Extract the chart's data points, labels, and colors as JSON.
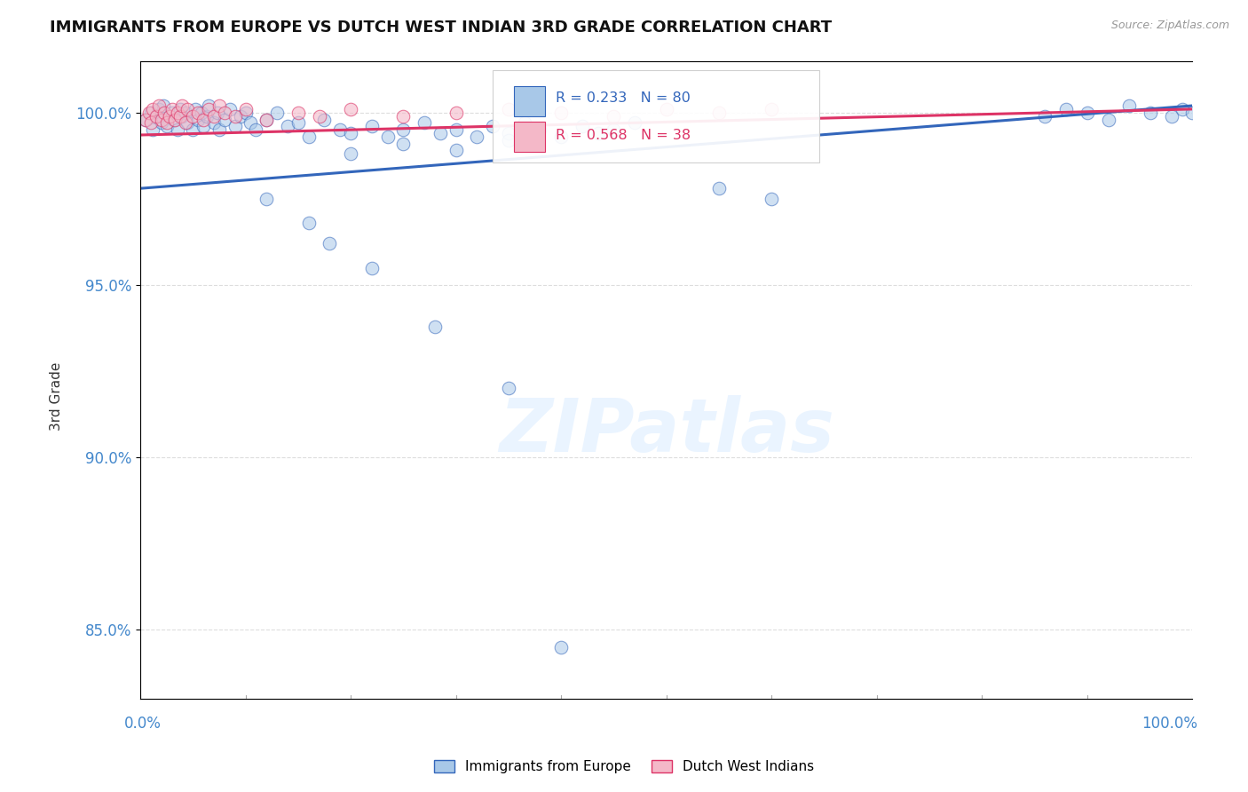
{
  "title": "IMMIGRANTS FROM EUROPE VS DUTCH WEST INDIAN 3RD GRADE CORRELATION CHART",
  "source": "Source: ZipAtlas.com",
  "ylabel": "3rd Grade",
  "xlim": [
    0.0,
    100.0
  ],
  "ylim": [
    83.0,
    101.5
  ],
  "yticks": [
    85.0,
    90.0,
    95.0,
    100.0
  ],
  "ytick_labels": [
    "85.0%",
    "90.0%",
    "95.0%",
    "100.0%"
  ],
  "xtick_left": "0.0%",
  "xtick_right": "100.0%",
  "legend_blue_label": "Immigrants from Europe",
  "legend_pink_label": "Dutch West Indians",
  "R_blue": 0.233,
  "N_blue": 80,
  "R_pink": 0.568,
  "N_pink": 38,
  "color_blue": "#a8c8e8",
  "color_pink": "#f4b8c8",
  "line_blue": "#3366bb",
  "line_pink": "#dd3366",
  "watermark": "ZIPatlas",
  "blue_line_start_y": 97.8,
  "blue_line_end_y": 100.2,
  "pink_line_start_y": 99.35,
  "pink_line_end_y": 100.1
}
